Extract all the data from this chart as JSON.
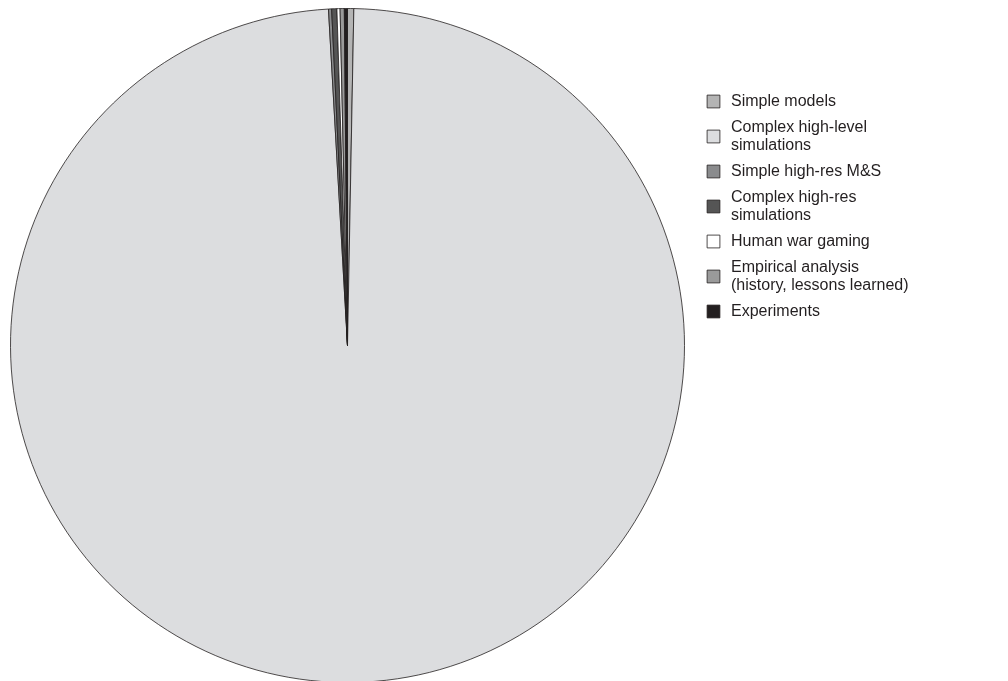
{
  "chart_data": {
    "type": "pie",
    "categories": [
      "Simple models",
      "Complex high-level simulations",
      "Simple high-res M&S",
      "Complex high-res simulations",
      "Human war gaming",
      "Empirical analysis (history, lessons learned)",
      "Experiments"
    ],
    "values": [
      0.3,
      98.8,
      0.15,
      0.25,
      0.15,
      0.2,
      0.15
    ],
    "colors": [
      "#b4b4b4",
      "#dcdddf",
      "#8a8b8d",
      "#555555",
      "#ffffff",
      "#9a9a9a",
      "#231f20"
    ],
    "legend": "right"
  }
}
